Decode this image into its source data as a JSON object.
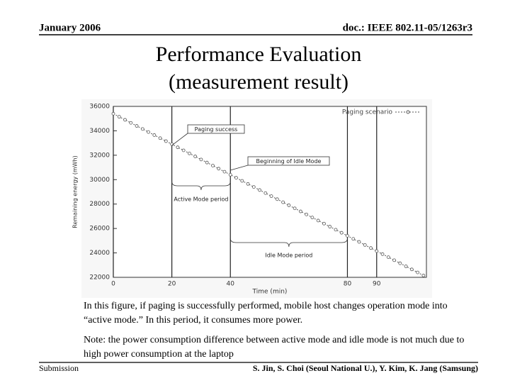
{
  "header": {
    "date": "January 2006",
    "doc": "doc.: IEEE 802.11-05/1263r3"
  },
  "title": {
    "line1": "Performance Evaluation",
    "line2": "(measurement result)"
  },
  "chart_data": {
    "type": "line",
    "x_label": "Time (min)",
    "y_label": "Remaining energy (mWh)",
    "xlim": [
      0,
      107
    ],
    "ylim": [
      22000,
      36000
    ],
    "xticks": [
      0,
      20,
      40,
      80,
      90
    ],
    "yticks": [
      22000,
      24000,
      26000,
      28000,
      30000,
      32000,
      34000,
      36000
    ],
    "x_grid": true,
    "legend": "upper right",
    "series": [
      {
        "name": "Paging scenario",
        "color": "#555555",
        "x": [
          0,
          2,
          4,
          6,
          8,
          10,
          12,
          14,
          16,
          18,
          20,
          22,
          24,
          26,
          28,
          30,
          32,
          34,
          36,
          38,
          40,
          42,
          44,
          46,
          48,
          50,
          52,
          54,
          56,
          58,
          60,
          62,
          64,
          66,
          68,
          70,
          72,
          74,
          76,
          78,
          80,
          82,
          84,
          86,
          88,
          90,
          92,
          94,
          96,
          98,
          100,
          102,
          104,
          106
        ],
        "values": [
          35400,
          35150,
          34900,
          34650,
          34400,
          34150,
          33900,
          33650,
          33400,
          33150,
          32900,
          32650,
          32400,
          32150,
          31900,
          31650,
          31400,
          31150,
          30900,
          30650,
          30400,
          30150,
          29900,
          29650,
          29400,
          29150,
          28900,
          28650,
          28400,
          28150,
          27900,
          27650,
          27400,
          27150,
          26900,
          26650,
          26400,
          26150,
          25900,
          25650,
          25400,
          25150,
          24900,
          24650,
          24400,
          24150,
          23900,
          23650,
          23400,
          23150,
          22900,
          22650,
          22400,
          22150
        ]
      }
    ],
    "annotations": [
      "Paging success",
      "Beginning of Idle Mode",
      "Active Mode period",
      "Idle Mode period"
    ]
  },
  "body": {
    "paragraph1": "In this figure, if paging is successfully performed, mobile host changes operation mode into “active mode.” In this period, it consumes more power.",
    "paragraph2": "Note: the power consumption difference between active mode and idle mode is not much due to high power consumption at the laptop"
  },
  "footer": {
    "left": "Submission",
    "right": "S. Jin, S. Choi (Seoul National U.), Y. Kim, K. Jang (Samsung)"
  }
}
